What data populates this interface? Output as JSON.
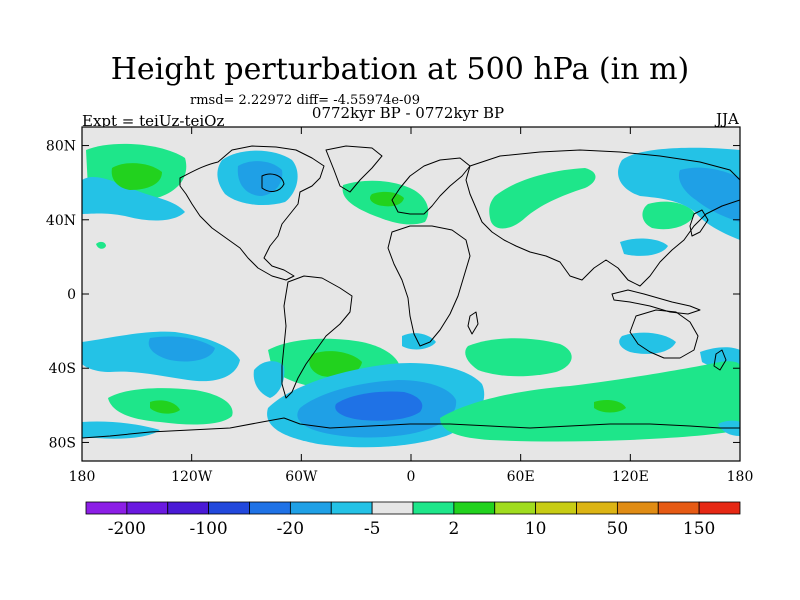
{
  "title": "Height perturbation at 500 hPa (in m)",
  "stats_line": "rmsd= 2.22972 diff= -4.55974e-09",
  "experiment_label": "Expt = teiUz-teiOz",
  "period_label": "0772kyr BP - 0772kyr BP",
  "season_label": "JJA",
  "map": {
    "projection": "cylindrical-equidistant",
    "lon_range": [
      -180,
      180
    ],
    "lat_range": [
      -90,
      90
    ],
    "lat_ticks": [
      {
        "value": 80,
        "label": "80N"
      },
      {
        "value": 40,
        "label": "40N"
      },
      {
        "value": 0,
        "label": "0"
      },
      {
        "value": -40,
        "label": "40S"
      },
      {
        "value": -80,
        "label": "80S"
      }
    ],
    "lon_ticks": [
      {
        "value": -180,
        "label": "180"
      },
      {
        "value": -120,
        "label": "120W"
      },
      {
        "value": -60,
        "label": "60W"
      },
      {
        "value": 0,
        "label": "0"
      },
      {
        "value": 60,
        "label": "60E"
      },
      {
        "value": 120,
        "label": "120E"
      },
      {
        "value": 180,
        "label": "180"
      }
    ]
  },
  "colorbar": {
    "colors": [
      "#8c1ee6",
      "#6a19e0",
      "#4a1ad6",
      "#2248dc",
      "#1f72e6",
      "#1fa0e6",
      "#24c2e6",
      "#e6e6e6",
      "#1ee68a",
      "#22d21e",
      "#a0dc1e",
      "#c8cc14",
      "#dcb414",
      "#e08c14",
      "#e65a14",
      "#e62814"
    ],
    "tick_labels": [
      "-200",
      "-100",
      "-20",
      "-5",
      "2",
      "10",
      "50",
      "150"
    ]
  }
}
